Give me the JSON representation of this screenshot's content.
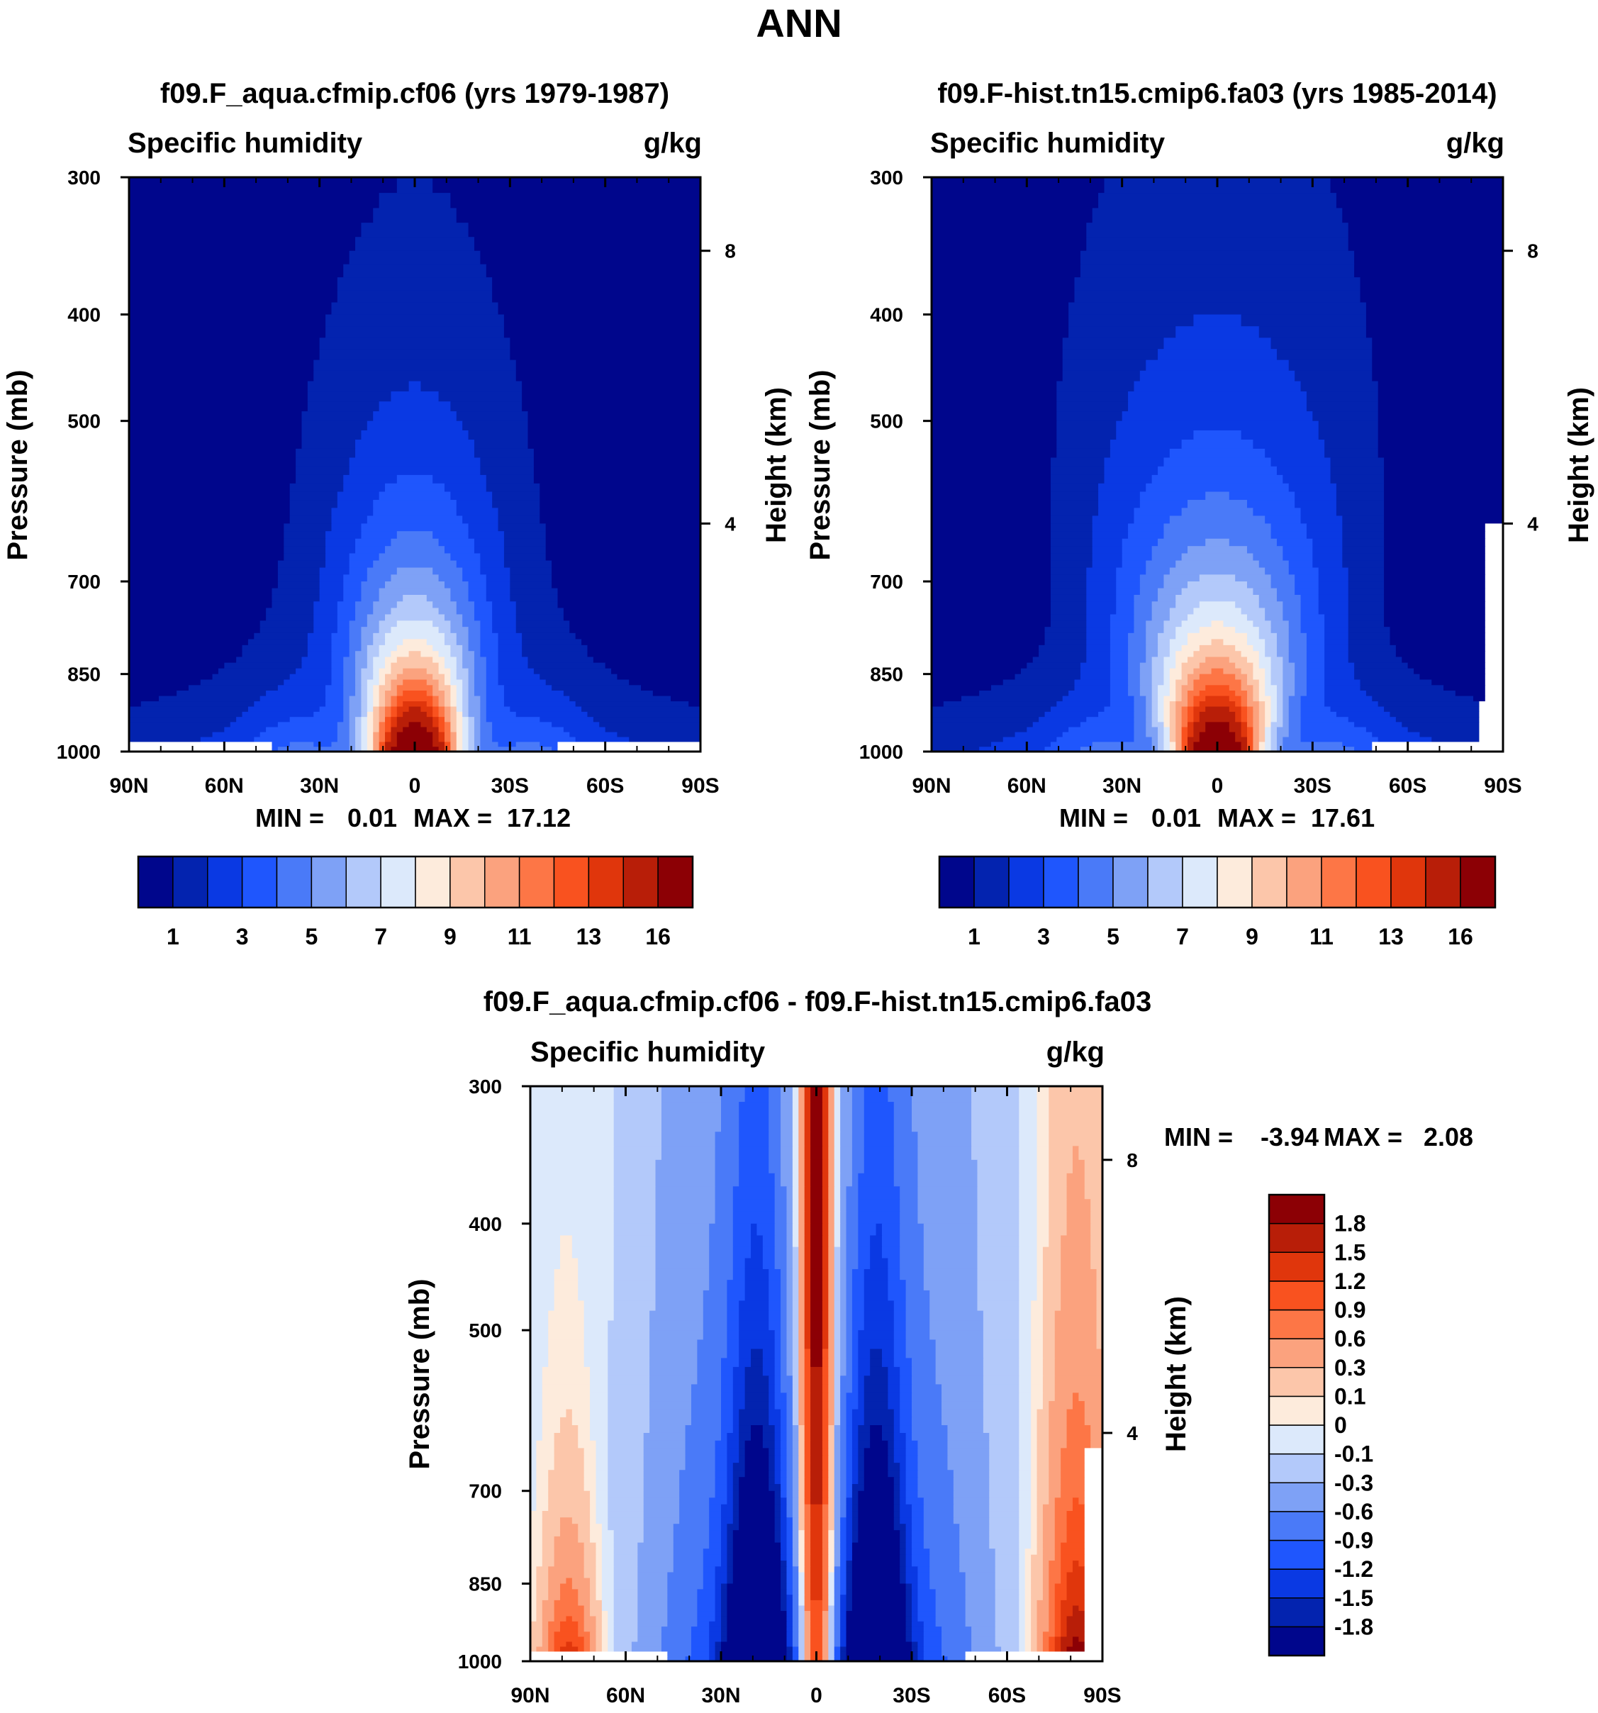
{
  "figure": {
    "title": "ANN"
  },
  "colors": {
    "abs_palette": [
      "#00068c",
      "#0323af",
      "#0a39e3",
      "#1f56fd",
      "#4a7af8",
      "#7ea1f6",
      "#b3c9fa",
      "#dce9fb",
      "#fdebdc",
      "#fcc6aa",
      "#fba27e",
      "#fd7646",
      "#f9521f",
      "#e0360c",
      "#b81e08",
      "#8c0005"
    ],
    "diff_palette": [
      "#00068c",
      "#0323af",
      "#0a39e3",
      "#1f56fd",
      "#4a7af8",
      "#7ea1f6",
      "#b3c9fa",
      "#dce9fb",
      "#fdebdc",
      "#fcc6aa",
      "#fba27e",
      "#fd7646",
      "#f9521f",
      "#e0360c",
      "#b81e08",
      "#8c0005"
    ]
  },
  "chart_data": [
    {
      "id": "panel_a",
      "type": "contour",
      "title": "f09.F_aqua.cfmip.cf06 (yrs 1979-1987)",
      "variable": "Specific humidity",
      "units": "g/kg",
      "ylabel": "Pressure (mb)",
      "ylabel_right": "Height (km)",
      "x_ticks": [
        "90N",
        "60N",
        "30N",
        "0",
        "30S",
        "60S",
        "90S"
      ],
      "y_ticks": [
        "300",
        "400",
        "500",
        "700",
        "850",
        "1000"
      ],
      "height_ticks": [
        "8",
        "4"
      ],
      "min_label": "MIN =",
      "min_value": "0.01",
      "max_label": "MAX =",
      "max_value": "17.12",
      "cbar_labels": [
        "1",
        "3",
        "5",
        "7",
        "9",
        "11",
        "13",
        "16"
      ],
      "xlim": [
        90,
        -90
      ],
      "ylim": [
        300,
        1000
      ],
      "model": "abs",
      "tilt": 0,
      "scale": 1.0,
      "peak": 17.12
    },
    {
      "id": "panel_b",
      "type": "contour",
      "title": "f09.F-hist.tn15.cmip6.fa03 (yrs 1985-2014)",
      "variable": "Specific humidity",
      "units": "g/kg",
      "ylabel": "Pressure (mb)",
      "ylabel_right": "Height (km)",
      "x_ticks": [
        "90N",
        "60N",
        "30N",
        "0",
        "30S",
        "60S",
        "90S"
      ],
      "y_ticks": [
        "300",
        "400",
        "500",
        "700",
        "850",
        "1000"
      ],
      "height_ticks": [
        "8",
        "4"
      ],
      "min_label": "MIN =",
      "min_value": "0.01",
      "max_label": "MAX =",
      "max_value": "17.61",
      "cbar_labels": [
        "1",
        "3",
        "5",
        "7",
        "9",
        "11",
        "13",
        "16"
      ],
      "xlim": [
        90,
        -90
      ],
      "ylim": [
        300,
        1000
      ],
      "model": "abs",
      "tilt": 0,
      "scale": 1.6,
      "peak": 17.61
    },
    {
      "id": "panel_c",
      "type": "contour",
      "title": "f09.F_aqua.cfmip.cf06 - f09.F-hist.tn15.cmip6.fa03",
      "variable": "Specific humidity",
      "units": "g/kg",
      "ylabel": "Pressure (mb)",
      "ylabel_right": "Height (km)",
      "x_ticks": [
        "90N",
        "60N",
        "30N",
        "0",
        "30S",
        "60S",
        "90S"
      ],
      "y_ticks": [
        "300",
        "400",
        "500",
        "700",
        "850",
        "1000"
      ],
      "height_ticks": [
        "8",
        "4"
      ],
      "min_label": "MIN =",
      "min_value": "-3.94",
      "max_label": "MAX =",
      "max_value": "2.08",
      "cbar_labels": [
        "1.8",
        "1.5",
        "1.2",
        "0.9",
        "0.6",
        "0.3",
        "0.1",
        "0",
        "-0.1",
        "-0.3",
        "-0.6",
        "-0.9",
        "-1.2",
        "-1.5",
        "-1.8"
      ],
      "xlim": [
        90,
        -90
      ],
      "ylim": [
        300,
        1000
      ],
      "model": "diff",
      "min": -3.94,
      "max": 2.08
    }
  ]
}
